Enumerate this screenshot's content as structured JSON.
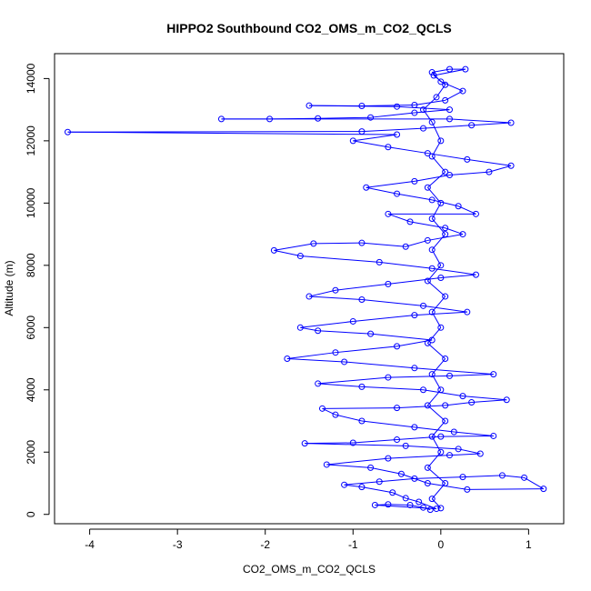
{
  "chart_data": {
    "type": "scatter",
    "title": "HIPPO2 Southbound CO2_OMS_m_CO2_QCLS",
    "xlabel": "CO2_OMS_m_CO2_QCLS",
    "ylabel": "Altitude (m)",
    "xlim": [
      -4.4,
      1.4
    ],
    "ylim": [
      -300,
      14800
    ],
    "xticks": [
      -4,
      -3,
      -2,
      -1,
      0,
      1
    ],
    "yticks": [
      0,
      2000,
      4000,
      6000,
      8000,
      10000,
      12000,
      14000
    ],
    "grid": false,
    "legend": "none",
    "point_style": "open-circle",
    "connected": true,
    "color": "#0000ff",
    "series": [
      {
        "points": [
          [
            -0.12,
            150
          ],
          [
            -0.2,
            220
          ],
          [
            -0.35,
            300
          ],
          [
            -0.6,
            320
          ],
          [
            -0.75,
            300
          ],
          [
            -0.05,
            180
          ],
          [
            -0.25,
            400
          ],
          [
            -0.4,
            520
          ],
          [
            -0.55,
            700
          ],
          [
            -0.9,
            880
          ],
          [
            -1.1,
            950
          ],
          [
            -0.7,
            1050
          ],
          [
            -0.3,
            1150
          ],
          [
            0.25,
            1200
          ],
          [
            0.7,
            1250
          ],
          [
            0.95,
            1180
          ],
          [
            1.17,
            820
          ],
          [
            0.3,
            800
          ],
          [
            -0.15,
            1000
          ],
          [
            -0.45,
            1300
          ],
          [
            -0.8,
            1500
          ],
          [
            -1.3,
            1600
          ],
          [
            -0.6,
            1800
          ],
          [
            0.1,
            1900
          ],
          [
            0.45,
            1950
          ],
          [
            0.2,
            2100
          ],
          [
            -0.4,
            2200
          ],
          [
            -1.55,
            2280
          ],
          [
            -1.0,
            2300
          ],
          [
            -0.5,
            2400
          ],
          [
            0.0,
            2500
          ],
          [
            0.6,
            2520
          ],
          [
            0.15,
            2650
          ],
          [
            -0.3,
            2800
          ],
          [
            -0.9,
            3000
          ],
          [
            -1.2,
            3200
          ],
          [
            -1.35,
            3400
          ],
          [
            -0.5,
            3420
          ],
          [
            0.05,
            3500
          ],
          [
            0.35,
            3600
          ],
          [
            0.75,
            3680
          ],
          [
            0.25,
            3800
          ],
          [
            -0.2,
            4000
          ],
          [
            -0.9,
            4100
          ],
          [
            -1.4,
            4200
          ],
          [
            -0.6,
            4400
          ],
          [
            0.1,
            4450
          ],
          [
            0.6,
            4500
          ],
          [
            -0.3,
            4700
          ],
          [
            -1.1,
            4900
          ],
          [
            -1.75,
            5000
          ],
          [
            -1.2,
            5200
          ],
          [
            -0.5,
            5400
          ],
          [
            -0.1,
            5600
          ],
          [
            -0.8,
            5800
          ],
          [
            -1.4,
            5900
          ],
          [
            -1.6,
            6000
          ],
          [
            -1.0,
            6200
          ],
          [
            -0.3,
            6400
          ],
          [
            0.3,
            6500
          ],
          [
            -0.2,
            6700
          ],
          [
            -0.9,
            6900
          ],
          [
            -1.5,
            7000
          ],
          [
            -1.2,
            7200
          ],
          [
            -0.6,
            7400
          ],
          [
            0.0,
            7600
          ],
          [
            0.4,
            7700
          ],
          [
            -0.1,
            7900
          ],
          [
            -0.7,
            8100
          ],
          [
            -1.6,
            8300
          ],
          [
            -1.9,
            8480
          ],
          [
            -1.45,
            8700
          ],
          [
            -0.9,
            8720
          ],
          [
            -0.4,
            8600
          ],
          [
            -0.15,
            8800
          ],
          [
            0.25,
            9000
          ],
          [
            0.05,
            9200
          ],
          [
            -0.35,
            9400
          ],
          [
            -0.6,
            9650
          ],
          [
            0.4,
            9650
          ],
          [
            0.2,
            9900
          ],
          [
            -0.1,
            10100
          ],
          [
            -0.5,
            10300
          ],
          [
            -0.85,
            10500
          ],
          [
            -0.3,
            10700
          ],
          [
            0.1,
            10900
          ],
          [
            0.55,
            11000
          ],
          [
            0.8,
            11200
          ],
          [
            0.3,
            11400
          ],
          [
            -0.15,
            11600
          ],
          [
            -0.6,
            11800
          ],
          [
            -1.0,
            12000
          ],
          [
            -0.5,
            12200
          ],
          [
            -4.25,
            12280
          ],
          [
            -0.9,
            12300
          ],
          [
            -0.2,
            12400
          ],
          [
            0.35,
            12500
          ],
          [
            0.8,
            12580
          ],
          [
            0.1,
            12700
          ],
          [
            -2.5,
            12700
          ],
          [
            -1.95,
            12700
          ],
          [
            -1.4,
            12720
          ],
          [
            -0.8,
            12750
          ],
          [
            -0.3,
            12900
          ],
          [
            0.1,
            13000
          ],
          [
            -0.5,
            13100
          ],
          [
            -1.5,
            13130
          ],
          [
            -0.9,
            13120
          ],
          [
            -0.3,
            13150
          ],
          [
            0.05,
            13300
          ],
          [
            0.25,
            13600
          ],
          [
            0.0,
            13900
          ],
          [
            -0.1,
            14200
          ],
          [
            0.1,
            14300
          ],
          [
            0.28,
            14300
          ],
          [
            -0.08,
            14100
          ],
          [
            0.05,
            13800
          ],
          [
            -0.05,
            13400
          ],
          [
            -0.2,
            13000
          ],
          [
            -0.1,
            12600
          ],
          [
            0.0,
            12000
          ],
          [
            -0.1,
            11500
          ],
          [
            0.05,
            11000
          ],
          [
            -0.15,
            10500
          ],
          [
            0.0,
            10000
          ],
          [
            -0.1,
            9500
          ],
          [
            0.05,
            9000
          ],
          [
            -0.1,
            8500
          ],
          [
            0.0,
            8000
          ],
          [
            -0.15,
            7500
          ],
          [
            0.05,
            7000
          ],
          [
            -0.1,
            6500
          ],
          [
            0.0,
            6000
          ],
          [
            -0.15,
            5500
          ],
          [
            0.05,
            5000
          ],
          [
            -0.1,
            4500
          ],
          [
            0.0,
            4000
          ],
          [
            -0.15,
            3500
          ],
          [
            0.05,
            3000
          ],
          [
            -0.1,
            2500
          ],
          [
            0.0,
            2000
          ],
          [
            -0.15,
            1500
          ],
          [
            0.05,
            1000
          ],
          [
            -0.1,
            500
          ],
          [
            0.0,
            200
          ]
        ]
      }
    ]
  }
}
